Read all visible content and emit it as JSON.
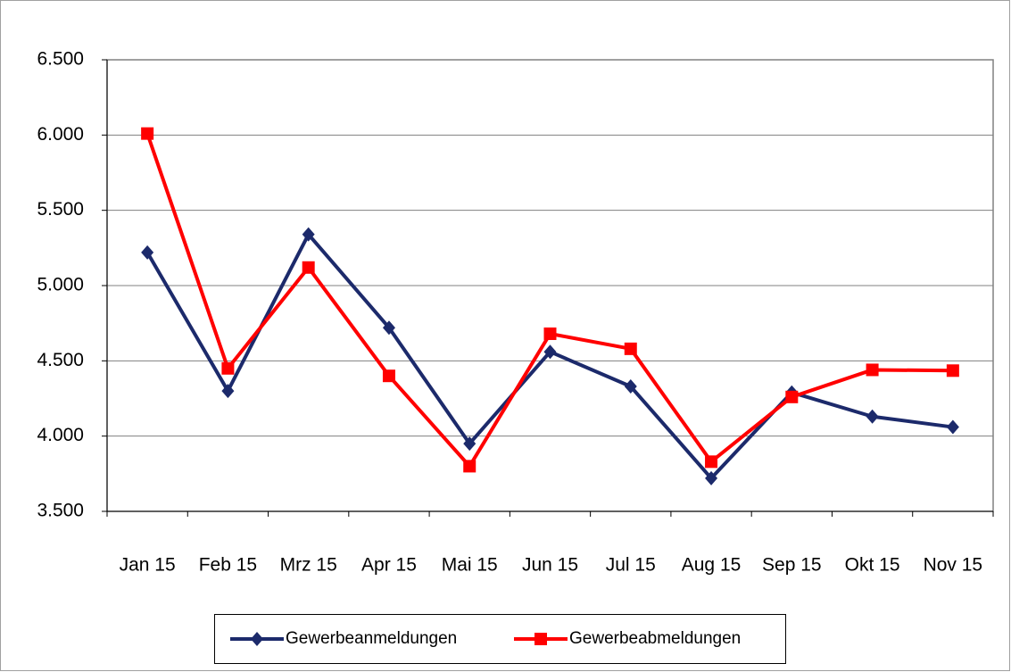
{
  "chart_data": {
    "type": "line",
    "categories": [
      "Jan 15",
      "Feb 15",
      "Mrz 15",
      "Apr 15",
      "Mai 15",
      "Jun 15",
      "Jul 15",
      "Aug 15",
      "Sep 15",
      "Okt 15",
      "Nov 15"
    ],
    "series": [
      {
        "name": "Gewerbeanmeldungen",
        "color": "#1c2a6b",
        "marker": "diamond",
        "values": [
          5220,
          4300,
          5340,
          4720,
          3950,
          4560,
          4330,
          3720,
          4290,
          4130,
          4060
        ]
      },
      {
        "name": "Gewerbeabmeldungen",
        "color": "#ff0000",
        "marker": "square",
        "values": [
          6010,
          4450,
          5120,
          4400,
          3800,
          4680,
          4580,
          3830,
          4260,
          4440,
          4435
        ]
      }
    ],
    "ylim": [
      3500,
      6500
    ],
    "yticks": [
      {
        "value": 3500,
        "label": "3.500"
      },
      {
        "value": 4000,
        "label": "4.000"
      },
      {
        "value": 4500,
        "label": "4.500"
      },
      {
        "value": 5000,
        "label": "5.000"
      },
      {
        "value": 5500,
        "label": "5.500"
      },
      {
        "value": 6000,
        "label": "6.000"
      },
      {
        "value": 6500,
        "label": "6.500"
      }
    ],
    "grid": true,
    "legend": "bottom"
  }
}
